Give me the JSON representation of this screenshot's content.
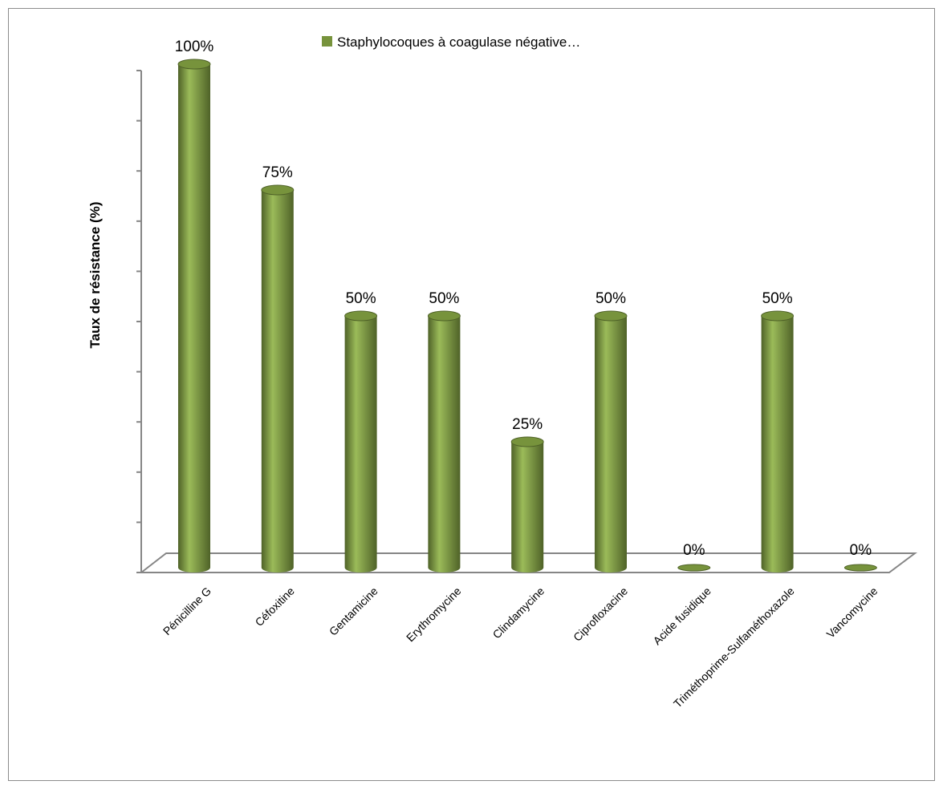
{
  "chart_data": {
    "type": "bar",
    "categories": [
      "Pénicilline G",
      "Céfoxitine",
      "Gentamicine",
      "Erythromycine",
      "Clindamycine",
      "Ciprofloxacine",
      "Acide fusidique",
      "Triméthoprime-Sulfaméthoxazole",
      "Vancomycine"
    ],
    "series": [
      {
        "name": "Staphylocoques à coagulase négative…",
        "values": [
          100,
          75,
          50,
          50,
          25,
          50,
          0,
          50,
          0
        ],
        "data_labels": [
          "100%",
          "75%",
          "50%",
          "50%",
          "25%",
          "50%",
          "0%",
          "50%",
          "0%"
        ]
      }
    ],
    "ylabel": "Taux de résistance (%)",
    "xlabel": "",
    "ylim": [
      0,
      100
    ],
    "y_ticks": 10,
    "bar_shape": "3d-cylinder",
    "legend_position": "top",
    "grid": false,
    "colors": {
      "bar": "#77933c",
      "bar_light": "#9bbb59",
      "bar_dark": "#4f6228",
      "axis": "#868686"
    }
  }
}
